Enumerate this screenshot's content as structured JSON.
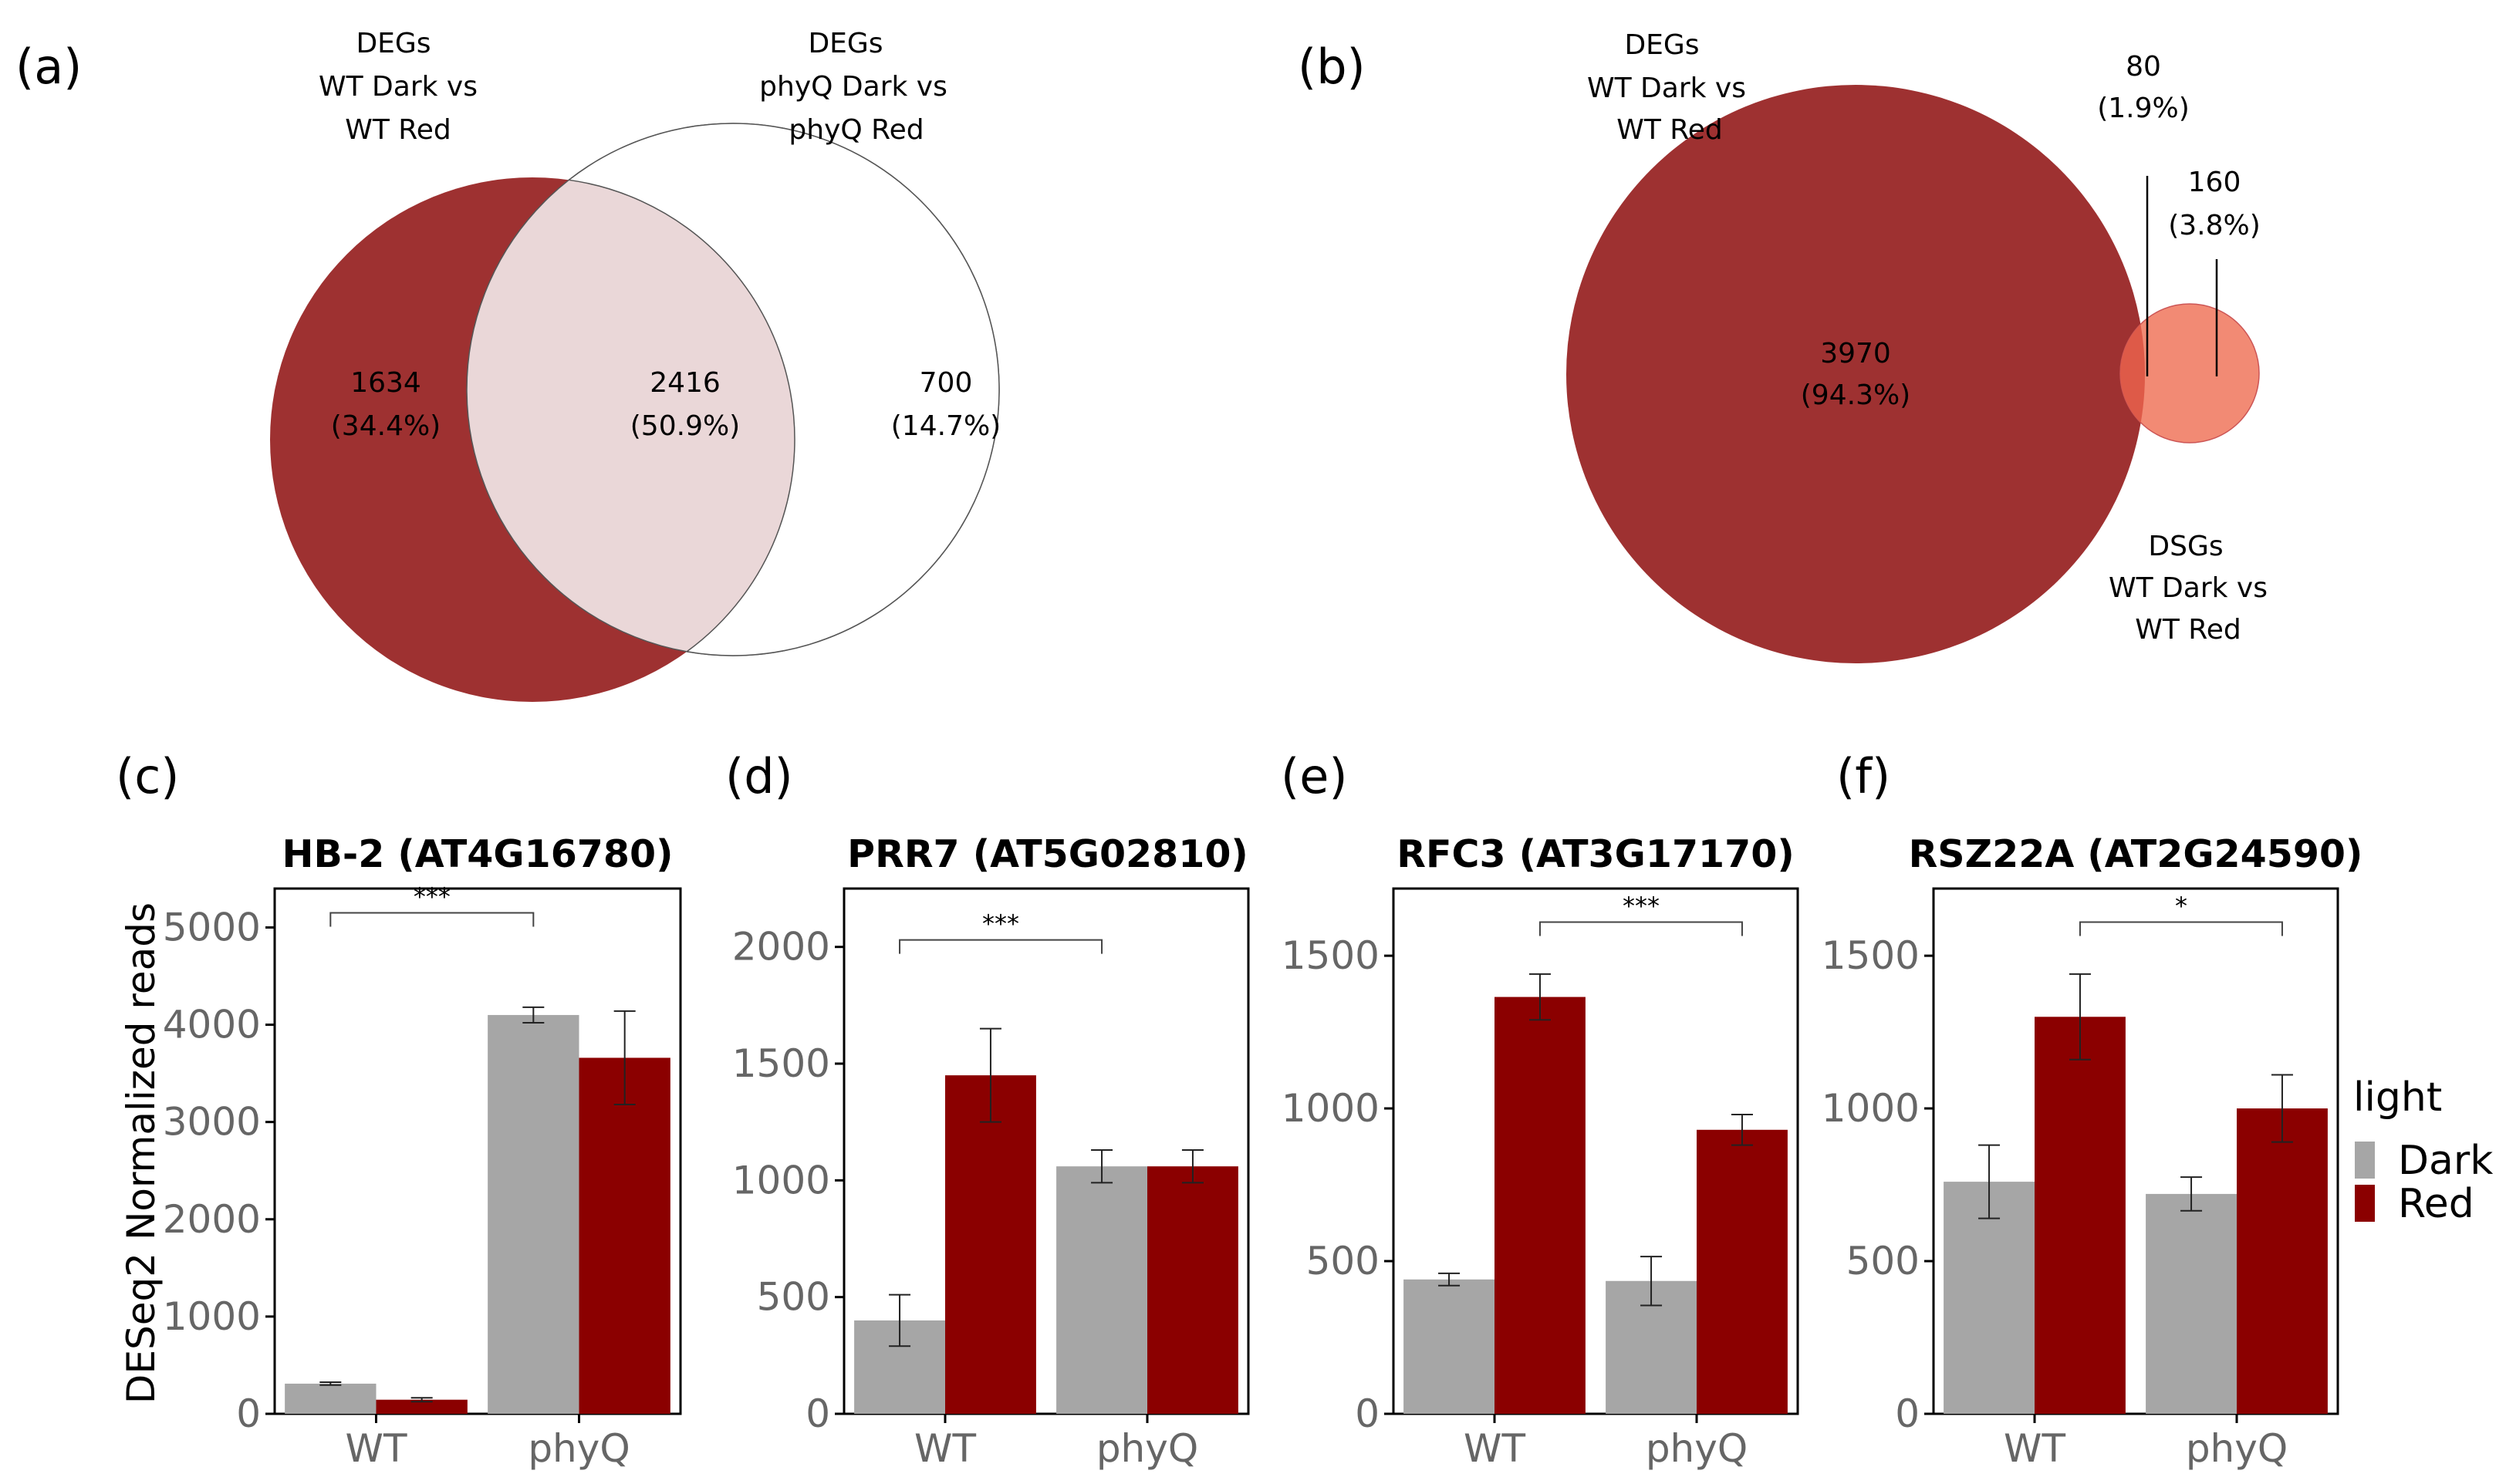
{
  "colors": {
    "dark_red": "#9E3131",
    "light_pink": "#EAD7D8",
    "salmon": "#F28A74",
    "salmon_overlap": "#DE5A48",
    "bar_dark": "#A6A6A6",
    "bar_red": "#8B0000"
  },
  "venn_a": {
    "panel_label": "(a)",
    "left_title": [
      "DEGs",
      "WT Dark vs",
      "WT Red"
    ],
    "right_title": [
      "DEGs",
      "phyQ Dark vs",
      "phyQ Red"
    ],
    "left_only": {
      "count": "1634",
      "pct": "(34.4%)"
    },
    "overlap": {
      "count": "2416",
      "pct": "(50.9%)"
    },
    "right_only": {
      "count": "700",
      "pct": "(14.7%)"
    }
  },
  "venn_b": {
    "panel_label": "(b)",
    "big_title": [
      "DEGs",
      "WT Dark vs",
      "WT Red"
    ],
    "small_title": [
      "DSGs",
      "WT Dark vs",
      "WT Red"
    ],
    "big_only": {
      "count": "3970",
      "pct": "(94.3%)"
    },
    "overlap": {
      "count": "80",
      "pct": "(1.9%)"
    },
    "small_only": {
      "count": "160",
      "pct": "(3.8%)"
    }
  },
  "ylabel": "DESeq2 Normalized reads",
  "legend": {
    "title": "light",
    "items": [
      "Dark",
      "Red"
    ]
  },
  "chart_data": [
    {
      "panel_label": "(c)",
      "type": "bar",
      "title": "HB-2 (AT4G16780)",
      "categories": [
        "WT",
        "phyQ"
      ],
      "ylim": [
        0,
        5400
      ],
      "ticks": [
        0,
        1000,
        2000,
        3000,
        4000,
        5000
      ],
      "series": [
        {
          "name": "Dark",
          "values": [
            310,
            4100
          ],
          "err": [
            15,
            80
          ]
        },
        {
          "name": "Red",
          "values": [
            145,
            3660
          ],
          "err": [
            20,
            480
          ]
        }
      ],
      "significance": {
        "label": "***",
        "from": "WT:Dark",
        "to": "phyQ:Dark",
        "y": 5150
      }
    },
    {
      "panel_label": "(d)",
      "type": "bar",
      "title": "PRR7 (AT5G02810)",
      "categories": [
        "WT",
        "phyQ"
      ],
      "ylim": [
        0,
        2250
      ],
      "ticks": [
        0,
        500,
        1000,
        1500,
        2000
      ],
      "series": [
        {
          "name": "Dark",
          "values": [
            400,
            1060
          ],
          "err": [
            110,
            70
          ]
        },
        {
          "name": "Red",
          "values": [
            1450,
            1060
          ],
          "err": [
            200,
            70
          ]
        }
      ],
      "significance": {
        "label": "***",
        "from": "WT:Dark",
        "to": "phyQ:Dark",
        "y": 2030
      }
    },
    {
      "panel_label": "(e)",
      "type": "bar",
      "title": "RFC3 (AT3G17170)",
      "categories": [
        "WT",
        "phyQ"
      ],
      "ylim": [
        0,
        1720
      ],
      "ticks": [
        0,
        500,
        1000,
        1500
      ],
      "series": [
        {
          "name": "Dark",
          "values": [
            440,
            435
          ],
          "err": [
            20,
            80
          ]
        },
        {
          "name": "Red",
          "values": [
            1365,
            930
          ],
          "err": [
            75,
            50
          ]
        }
      ],
      "significance": {
        "label": "***",
        "from": "WT:Red",
        "to": "phyQ:Red",
        "y": 1610
      }
    },
    {
      "panel_label": "(f)",
      "type": "bar",
      "title": "RSZ22A (AT2G24590)",
      "categories": [
        "WT",
        "phyQ"
      ],
      "ylim": [
        0,
        1720
      ],
      "ticks": [
        0,
        500,
        1000,
        1500
      ],
      "series": [
        {
          "name": "Dark",
          "values": [
            760,
            720
          ],
          "err": [
            120,
            55
          ]
        },
        {
          "name": "Red",
          "values": [
            1300,
            1000
          ],
          "err": [
            140,
            110
          ]
        }
      ],
      "significance": {
        "label": "*",
        "from": "WT:Red",
        "to": "phyQ:Red",
        "y": 1610
      }
    }
  ]
}
